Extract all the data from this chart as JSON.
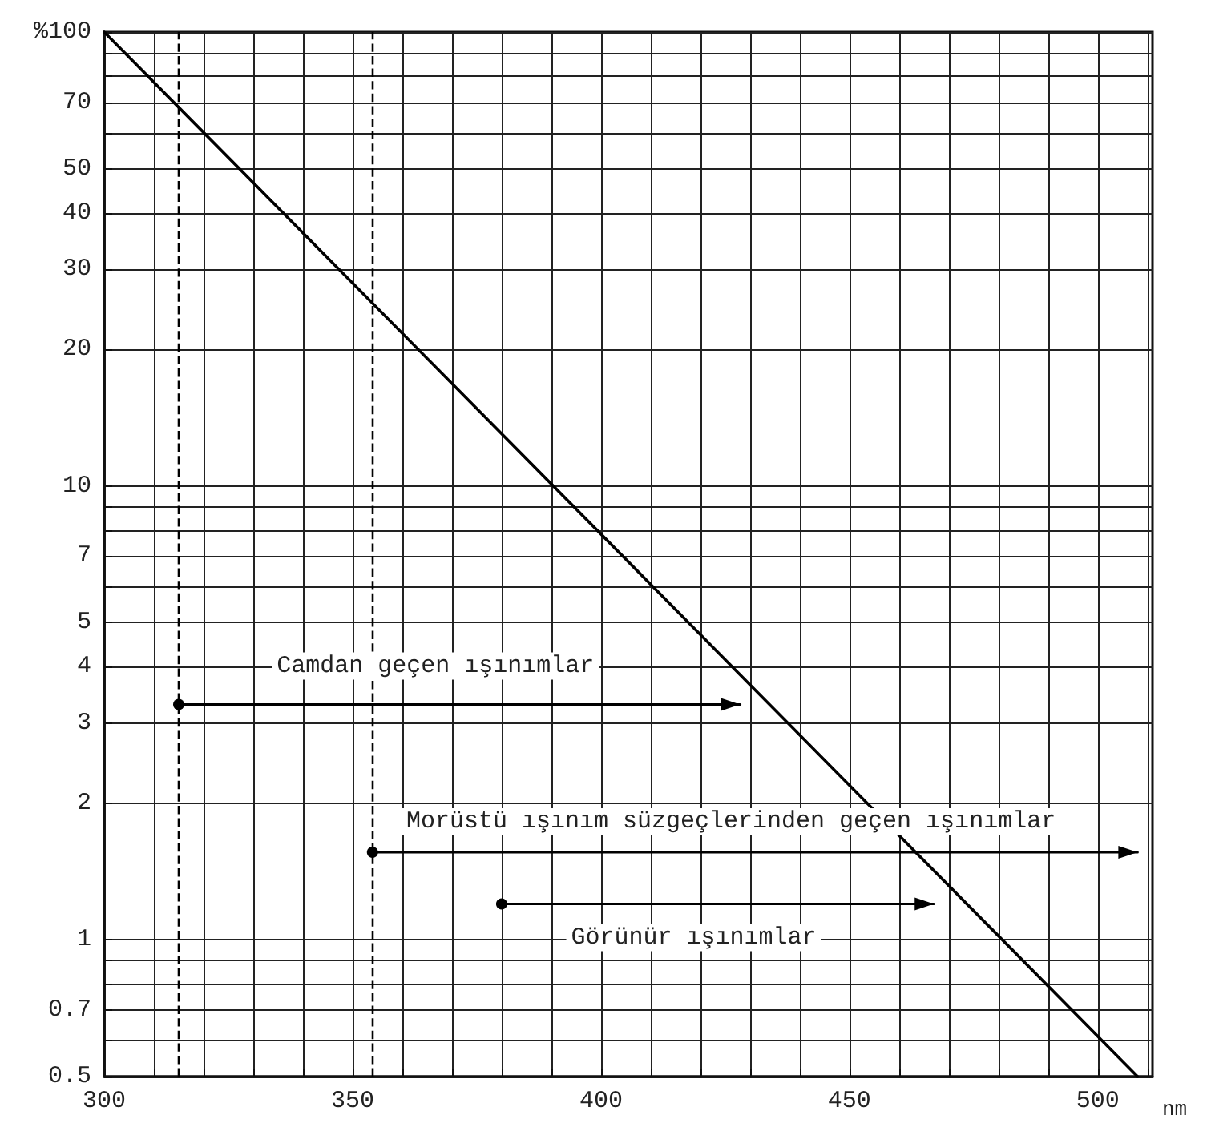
{
  "chart_data": {
    "type": "line",
    "xlabel": "nm",
    "xlim": [
      300,
      511
    ],
    "xticks": [
      300,
      {
        "value": 310,
        "label": null
      },
      {
        "value": 320,
        "label": null
      },
      {
        "value": 330,
        "label": null
      },
      {
        "value": 340,
        "label": null
      },
      350,
      {
        "value": 360,
        "label": null
      },
      {
        "value": 370,
        "label": null
      },
      {
        "value": 380,
        "label": null
      },
      {
        "value": 390,
        "label": null
      },
      400,
      {
        "value": 410,
        "label": null
      },
      {
        "value": 420,
        "label": null
      },
      {
        "value": 430,
        "label": null
      },
      {
        "value": 440,
        "label": null
      },
      450,
      {
        "value": 460,
        "label": null
      },
      {
        "value": 470,
        "label": null
      },
      {
        "value": 480,
        "label": null
      },
      {
        "value": 490,
        "label": null
      },
      500,
      {
        "value": 510,
        "label": null
      }
    ],
    "ylim": [
      0.5,
      100
    ],
    "yticks": [
      0.5,
      {
        "value": 0.6,
        "label": null
      },
      0.7,
      {
        "value": 0.8,
        "label": null
      },
      {
        "value": 0.9,
        "label": null
      },
      1,
      2,
      3,
      4,
      5,
      {
        "value": 6,
        "label": null
      },
      7,
      {
        "value": 8,
        "label": null
      },
      {
        "value": 9,
        "label": null
      },
      10,
      20,
      30,
      40,
      50,
      {
        "value": 60,
        "label": null
      },
      70,
      {
        "value": 80,
        "label": null
      },
      {
        "value": 90,
        "label": null
      },
      {
        "value": 100,
        "label": "%100"
      }
    ],
    "log": "y",
    "grid": true,
    "series": [
      {
        "type": "line",
        "color": "#000000",
        "x": [
          300,
          508
        ],
        "values": [
          100,
          0.5
        ],
        "marker": "none"
      },
      {
        "type": "line",
        "color": "#000000",
        "x": [
          315,
          428
        ],
        "values": [
          3.3,
          3.3
        ],
        "marker": "circle"
      },
      {
        "type": "line",
        "color": "#000000",
        "x": [
          354,
          508
        ],
        "values": [
          1.56,
          1.56
        ],
        "marker": "circle"
      },
      {
        "type": "line",
        "color": "#000000",
        "x": [
          380,
          467
        ],
        "values": [
          1.2,
          1.2
        ],
        "marker": "circle"
      }
    ],
    "ref_lines": [
      {
        "axis": "x",
        "value": 315,
        "color": "#000000",
        "line_style": "dashed"
      },
      {
        "axis": "x",
        "value": 354,
        "color": "#000000",
        "line_style": "dashed"
      }
    ],
    "annotations": [
      "Camdan geçen ışınımlar",
      "Morüstü ışınım süzgeçlerinden geçen ışınımlar",
      "Görünür ışınımlar"
    ]
  }
}
